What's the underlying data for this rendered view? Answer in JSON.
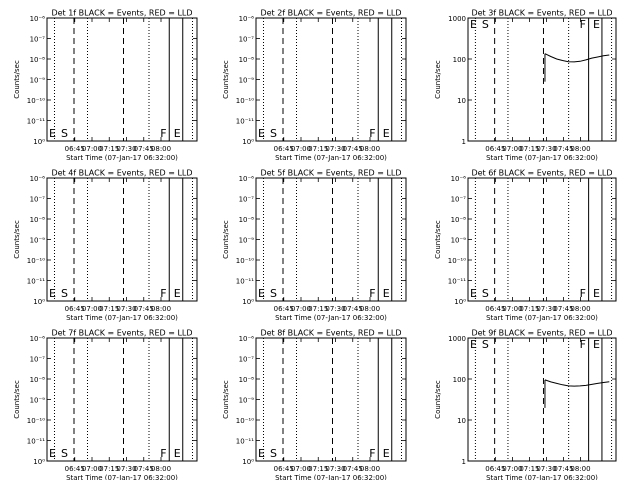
{
  "chart_data": [
    {
      "type": "line",
      "title": "Det 1f BLACK = Events, RED = LLD",
      "xlabel": "Start Time (07-Jan-17 06:32:00)",
      "ylabel": "Counts/sec",
      "yscale": "log",
      "ylim": [
        1,
        1e-06
      ],
      "yticks": [
        "10⁻⁶",
        "10⁻⁷",
        "10⁻⁸",
        "10⁻⁹",
        "10⁻¹⁰",
        "10⁻¹¹",
        "10⁰"
      ],
      "xticks": [
        "06:45",
        "07:00",
        "07:15",
        "07:30",
        "07:45",
        "08:00"
      ],
      "markers": [
        "E",
        "S",
        "F",
        "E"
      ],
      "series": []
    },
    {
      "type": "line",
      "title": "Det 2f BLACK = Events, RED = LLD",
      "xlabel": "Start Time (07-Jan-17 06:32:00)",
      "ylabel": "Counts/sec",
      "yscale": "log",
      "ylim": [
        1,
        1e-06
      ],
      "yticks": [
        "10⁻⁶",
        "10⁻⁷",
        "10⁻⁸",
        "10⁻⁹",
        "10⁻¹⁰",
        "10⁻¹¹",
        "10⁰"
      ],
      "xticks": [
        "06:45",
        "07:00",
        "07:15",
        "07:30",
        "07:45",
        "08:00"
      ],
      "markers": [
        "E",
        "S",
        "F",
        "E"
      ],
      "series": []
    },
    {
      "type": "line",
      "title": "Det 3f BLACK = Events, RED = LLD",
      "xlabel": "Start Time (07-Jan-17 06:32:00)",
      "ylabel": "Counts/sec",
      "yscale": "log",
      "ylim": [
        1,
        1000
      ],
      "yticks": [
        "1000",
        "100",
        "10",
        "1"
      ],
      "xticks": [
        "06:45",
        "07:00",
        "07:15",
        "07:30",
        "07:45",
        "08:00"
      ],
      "markers": [
        "E",
        "S",
        "F",
        "E"
      ],
      "series": [
        {
          "color": "#000000",
          "x": [
            0.0,
            2.0,
            4.0,
            6.0,
            8.0,
            10.0,
            12.0,
            14.0,
            16.0,
            18.0,
            20.0,
            22.0
          ],
          "y": [
            135,
            115,
            100,
            92,
            86,
            85,
            88,
            95,
            105,
            112,
            120,
            125
          ]
        }
      ]
    },
    {
      "type": "line",
      "title": "Det 4f BLACK = Events, RED = LLD",
      "xlabel": "Start Time (07-Jan-17 06:32:00)",
      "ylabel": "Counts/sec",
      "yscale": "log",
      "ylim": [
        1,
        1e-06
      ],
      "yticks": [
        "10⁻⁶",
        "10⁻⁷",
        "10⁻⁸",
        "10⁻⁹",
        "10⁻¹⁰",
        "10⁻¹¹",
        "10⁰"
      ],
      "xticks": [
        "06:45",
        "07:00",
        "07:15",
        "07:30",
        "07:45",
        "08:00"
      ],
      "markers": [
        "E",
        "S",
        "F",
        "E"
      ],
      "series": []
    },
    {
      "type": "line",
      "title": "Det 5f BLACK = Events, RED = LLD",
      "xlabel": "Start Time (07-Jan-17 06:32:00)",
      "ylabel": "Counts/sec",
      "yscale": "log",
      "ylim": [
        1,
        1e-06
      ],
      "yticks": [
        "10⁻⁶",
        "10⁻⁷",
        "10⁻⁸",
        "10⁻⁹",
        "10⁻¹⁰",
        "10⁻¹¹",
        "10⁰"
      ],
      "xticks": [
        "06:45",
        "07:00",
        "07:15",
        "07:30",
        "07:45",
        "08:00"
      ],
      "markers": [
        "E",
        "S",
        "F",
        "E"
      ],
      "series": []
    },
    {
      "type": "line",
      "title": "Det 6f BLACK = Events, RED = LLD",
      "xlabel": "Start Time (07-Jan-17 06:32:00)",
      "ylabel": "Counts/sec",
      "yscale": "log",
      "ylim": [
        1,
        1e-06
      ],
      "yticks": [
        "10⁻⁶",
        "10⁻⁷",
        "10⁻⁸",
        "10⁻⁹",
        "10⁻¹⁰",
        "10⁻¹¹",
        "10⁰"
      ],
      "xticks": [
        "06:45",
        "07:00",
        "07:15",
        "07:30",
        "07:45",
        "08:00"
      ],
      "markers": [
        "E",
        "S",
        "F",
        "E"
      ],
      "series": []
    },
    {
      "type": "line",
      "title": "Det 7f BLACK = Events, RED = LLD",
      "xlabel": "Start Time (07-Jan-17 06:32:00)",
      "ylabel": "Counts/sec",
      "yscale": "log",
      "ylim": [
        1,
        1e-06
      ],
      "yticks": [
        "10⁻⁶",
        "10⁻⁷",
        "10⁻⁸",
        "10⁻⁹",
        "10⁻¹⁰",
        "10⁻¹¹",
        "10⁰"
      ],
      "xticks": [
        "06:45",
        "07:00",
        "07:15",
        "07:30",
        "07:45",
        "08:00"
      ],
      "markers": [
        "E",
        "S",
        "F",
        "E"
      ],
      "series": []
    },
    {
      "type": "line",
      "title": "Det 8f BLACK = Events, RED = LLD",
      "xlabel": "Start Time (07-Jan-17 06:32:00)",
      "ylabel": "Counts/sec",
      "yscale": "log",
      "ylim": [
        1,
        1e-06
      ],
      "yticks": [
        "10⁻⁶",
        "10⁻⁷",
        "10⁻⁸",
        "10⁻⁹",
        "10⁻¹⁰",
        "10⁻¹¹",
        "10⁰"
      ],
      "xticks": [
        "06:45",
        "07:00",
        "07:15",
        "07:30",
        "07:45",
        "08:00"
      ],
      "markers": [
        "E",
        "S",
        "F",
        "E"
      ],
      "series": []
    },
    {
      "type": "line",
      "title": "Det 9f BLACK = Events, RED = LLD",
      "xlabel": "Start Time (07-Jan-17 06:32:00)",
      "ylabel": "Counts/sec",
      "yscale": "log",
      "ylim": [
        1,
        1000
      ],
      "yticks": [
        "1000",
        "100",
        "10",
        "1"
      ],
      "xticks": [
        "06:45",
        "07:00",
        "07:15",
        "07:30",
        "07:45",
        "08:00"
      ],
      "markers": [
        "E",
        "S",
        "F",
        "E"
      ],
      "series": [
        {
          "color": "#000000",
          "x": [
            0.0,
            2.0,
            4.0,
            6.0,
            8.0,
            10.0,
            12.0,
            14.0,
            16.0,
            18.0,
            20.0,
            22.0
          ],
          "y": [
            95,
            85,
            78,
            72,
            68,
            67,
            68,
            70,
            74,
            78,
            82,
            86
          ]
        }
      ]
    }
  ]
}
